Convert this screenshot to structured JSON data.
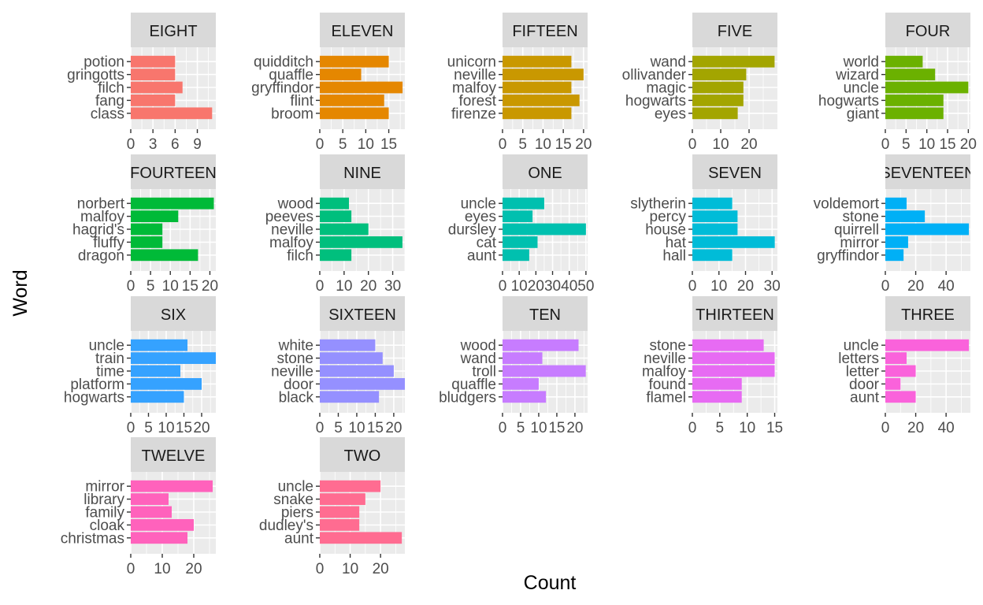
{
  "chart_data": {
    "type": "bar",
    "orientation": "horizontal",
    "xlabel": "Count",
    "ylabel": "Word",
    "grid": true,
    "legend": "none",
    "facets": [
      {
        "title": "EIGHT",
        "color": "#F8766D",
        "categories": [
          "potion",
          "gringotts",
          "filch",
          "fang",
          "class"
        ],
        "values": [
          6,
          6,
          7,
          6,
          11
        ],
        "xlim": [
          0,
          11.5
        ],
        "xticks": [
          0,
          3,
          6,
          9
        ]
      },
      {
        "title": "ELEVEN",
        "color": "#E58700",
        "categories": [
          "quidditch",
          "quaffle",
          "gryffindor",
          "flint",
          "broom"
        ],
        "values": [
          15,
          9,
          18,
          14,
          15
        ],
        "xlim": [
          0,
          18.5
        ],
        "xticks": [
          0,
          5,
          10,
          15
        ]
      },
      {
        "title": "FIFTEEN",
        "color": "#C99800",
        "categories": [
          "unicorn",
          "neville",
          "malfoy",
          "forest",
          "firenze"
        ],
        "values": [
          17,
          20,
          17,
          19,
          17
        ],
        "xlim": [
          0,
          21
        ],
        "xticks": [
          0,
          5,
          10,
          15,
          20
        ]
      },
      {
        "title": "FIVE",
        "color": "#A3A500",
        "categories": [
          "wand",
          "ollivander",
          "magic",
          "hogwarts",
          "eyes"
        ],
        "values": [
          29,
          19,
          18,
          18,
          16
        ],
        "xlim": [
          0,
          30
        ],
        "xticks": [
          0,
          10,
          20
        ]
      },
      {
        "title": "FOUR",
        "color": "#6BB100",
        "categories": [
          "world",
          "wizard",
          "uncle",
          "hogwarts",
          "giant"
        ],
        "values": [
          9,
          12,
          20,
          14,
          14
        ],
        "xlim": [
          0,
          20.5
        ],
        "xticks": [
          0,
          5,
          10,
          15,
          20
        ]
      },
      {
        "title": "FOURTEEN",
        "color": "#00BA38",
        "categories": [
          "norbert",
          "malfoy",
          "hagrid's",
          "fluffy",
          "dragon"
        ],
        "values": [
          21,
          12,
          8,
          8,
          17
        ],
        "xlim": [
          0,
          21.5
        ],
        "xticks": [
          0,
          5,
          10,
          15,
          20
        ]
      },
      {
        "title": "NINE",
        "color": "#00BF7D",
        "categories": [
          "wood",
          "peeves",
          "neville",
          "malfoy",
          "filch"
        ],
        "values": [
          12,
          13,
          20,
          34,
          13
        ],
        "xlim": [
          0,
          35
        ],
        "xticks": [
          0,
          10,
          20,
          30
        ]
      },
      {
        "title": "ONE",
        "color": "#00C0AF",
        "categories": [
          "uncle",
          "eyes",
          "dursley",
          "cat",
          "aunt"
        ],
        "values": [
          25,
          18,
          50,
          21,
          16
        ],
        "xlim": [
          0,
          51
        ],
        "xticks": [
          0,
          10,
          20,
          30,
          40,
          50
        ]
      },
      {
        "title": "SEVEN",
        "color": "#00BCD8",
        "categories": [
          "slytherin",
          "percy",
          "house",
          "hat",
          "hall"
        ],
        "values": [
          15,
          17,
          17,
          31,
          15
        ],
        "xlim": [
          0,
          32
        ],
        "xticks": [
          0,
          10,
          20,
          30
        ]
      },
      {
        "title": "SEVENTEEN",
        "color": "#00B0F6",
        "categories": [
          "voldemort",
          "stone",
          "quirrell",
          "mirror",
          "gryffindor"
        ],
        "values": [
          14,
          26,
          55,
          15,
          12
        ],
        "xlim": [
          0,
          56
        ],
        "xticks": [
          0,
          20,
          40
        ]
      },
      {
        "title": "SIX",
        "color": "#35A2FF",
        "categories": [
          "uncle",
          "train",
          "time",
          "platform",
          "hogwarts"
        ],
        "values": [
          16,
          24,
          14,
          20,
          15
        ],
        "xlim": [
          0,
          24
        ],
        "xticks": [
          0,
          5,
          10,
          15,
          20
        ]
      },
      {
        "title": "SIXTEEN",
        "color": "#9590FF",
        "categories": [
          "white",
          "stone",
          "neville",
          "door",
          "black"
        ],
        "values": [
          15,
          17,
          20,
          23,
          16
        ],
        "xlim": [
          0,
          23
        ],
        "xticks": [
          0,
          5,
          10,
          15,
          20
        ]
      },
      {
        "title": "TEN",
        "color": "#C77CFF",
        "categories": [
          "wood",
          "wand",
          "troll",
          "quaffle",
          "bludgers"
        ],
        "values": [
          21,
          11,
          23,
          10,
          12
        ],
        "xlim": [
          0,
          23.5
        ],
        "xticks": [
          0,
          5,
          10,
          15,
          20
        ]
      },
      {
        "title": "THIRTEEN",
        "color": "#E76BF3",
        "categories": [
          "stone",
          "neville",
          "malfoy",
          "found",
          "flamel"
        ],
        "values": [
          13,
          15,
          15,
          9,
          9
        ],
        "xlim": [
          0,
          15.5
        ],
        "xticks": [
          0,
          5,
          10,
          15
        ]
      },
      {
        "title": "THREE",
        "color": "#FA62DB",
        "categories": [
          "uncle",
          "letters",
          "letter",
          "door",
          "aunt"
        ],
        "values": [
          55,
          14,
          20,
          10,
          20
        ],
        "xlim": [
          0,
          56
        ],
        "xticks": [
          0,
          20,
          40
        ]
      },
      {
        "title": "TWELVE",
        "color": "#FF62BC",
        "categories": [
          "mirror",
          "library",
          "family",
          "cloak",
          "christmas"
        ],
        "values": [
          26,
          12,
          13,
          20,
          18
        ],
        "xlim": [
          0,
          27
        ],
        "xticks": [
          0,
          10,
          20
        ]
      },
      {
        "title": "TWO",
        "color": "#FF6C91",
        "categories": [
          "uncle",
          "snake",
          "piers",
          "dudley's",
          "aunt"
        ],
        "values": [
          20,
          15,
          13,
          13,
          27
        ],
        "xlim": [
          0,
          28
        ],
        "xticks": [
          0,
          10,
          20
        ]
      }
    ]
  }
}
